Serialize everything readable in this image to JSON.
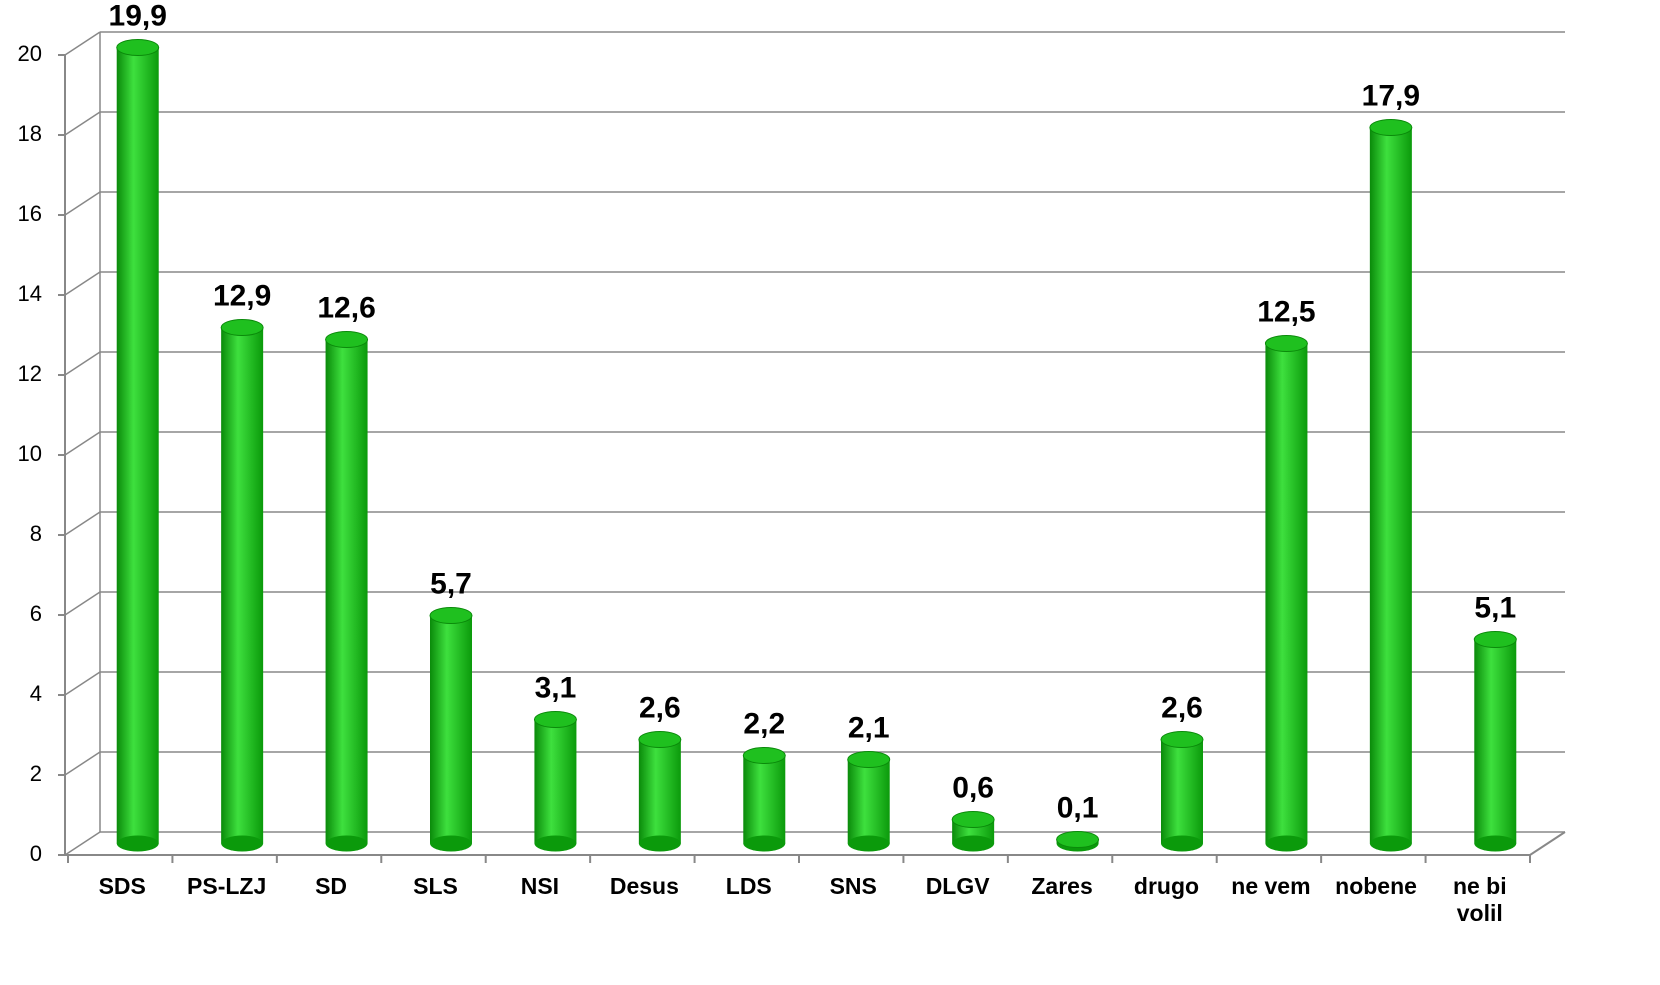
{
  "chart_data": {
    "type": "bar",
    "categories": [
      "SDS",
      "PS-LZJ",
      "SD",
      "SLS",
      "NSI",
      "Desus",
      "LDS",
      "SNS",
      "DLGV",
      "Zares",
      "drugo",
      "ne vem",
      "nobene",
      "ne bi volil"
    ],
    "values": [
      19.9,
      12.9,
      12.6,
      5.7,
      3.1,
      2.6,
      2.2,
      2.1,
      0.6,
      0.1,
      2.6,
      12.5,
      17.9,
      5.1
    ],
    "value_labels": [
      "19,9",
      "12,9",
      "12,6",
      "5,7",
      "3,1",
      "2,6",
      "2,2",
      "2,1",
      "0,6",
      "0,1",
      "2,6",
      "12,5",
      "17,9",
      "5,1"
    ],
    "color": "#1fc01f",
    "ylim": [
      0,
      20
    ],
    "yticks": [
      0,
      2,
      4,
      6,
      8,
      10,
      12,
      14,
      16,
      18,
      20
    ],
    "grid": true
  }
}
